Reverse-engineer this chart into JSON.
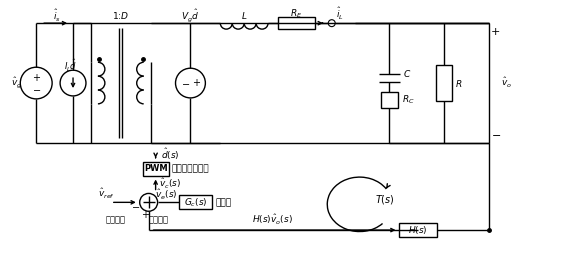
{
  "bg_color": "#ffffff",
  "line_color": "#000000",
  "fig_width": 5.61,
  "fig_height": 2.76,
  "dpi": 100,
  "labels": {
    "i_s": "$\\hat{i}_s$",
    "v_g": "$\\hat{v}_g$",
    "I_L_d": "$I_L\\hat{d}$",
    "one_D": "1:$D$",
    "Vg_d": "$V_g\\hat{d}$",
    "L": "$L$",
    "R_E": "$R_E$",
    "i_L": "$\\hat{i}_L$",
    "C": "$C$",
    "R_C": "$R_C$",
    "R": "$R$",
    "v_o": "$\\hat{v}_o$",
    "d_s": "$\\hat{d}(s)$",
    "PWM": "PWM",
    "pwm_text": "脉冲宽度调制器",
    "v_c_s": "$\\hat{v}_c(s)$",
    "G_c_s": "$G_c(s)$",
    "ctrl_text": "控制器",
    "v_e_s": "$\\hat{v}_e(s)$",
    "v_ref": "$\\hat{v}_{ref}$",
    "ref_text": "参考电压",
    "err_text": "误差信号",
    "H_s_vo_s": "$H(s)\\hat{v}_o(s)$",
    "H_s": "$H(s)$",
    "T_s": "$T(s)$"
  }
}
